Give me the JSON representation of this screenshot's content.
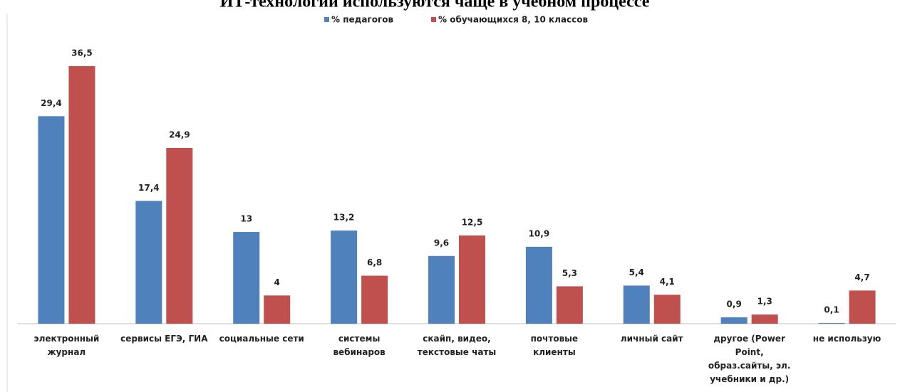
{
  "chart_data": {
    "type": "bar",
    "title": "ИТ-технологии используются чаще в учебном процессе",
    "categories": [
      [
        "электронный",
        "журнал"
      ],
      [
        "сервисы ЕГЭ, ГИА"
      ],
      [
        "социальные сети"
      ],
      [
        "системы",
        "вебинаров"
      ],
      [
        "скайп, видео,",
        "текстовые чаты"
      ],
      [
        "почтовые",
        "клиенты"
      ],
      [
        "личный сайт"
      ],
      [
        "другое (Power",
        "Point,",
        "образ.сайты, эл.",
        "учебники и др.)"
      ],
      [
        "не использую"
      ]
    ],
    "series": [
      {
        "name": "% педагогов",
        "color": "#4f81bd",
        "values": [
          29.4,
          17.4,
          13,
          13.2,
          9.6,
          10.9,
          5.4,
          0.9,
          0.1
        ],
        "value_labels": [
          "29,4",
          "17,4",
          "13",
          "13,2",
          "9,6",
          "10,9",
          "5,4",
          "0,9",
          "0,1"
        ]
      },
      {
        "name": "% обучающихся 8, 10 классов",
        "color": "#c0504d",
        "values": [
          36.5,
          24.9,
          4,
          6.8,
          12.5,
          5.3,
          4.1,
          1.3,
          4.7
        ],
        "value_labels": [
          "36,5",
          "24,9",
          "4",
          "6,8",
          "12,5",
          "5,3",
          "4,1",
          "1,3",
          "4,7"
        ]
      }
    ]
  }
}
